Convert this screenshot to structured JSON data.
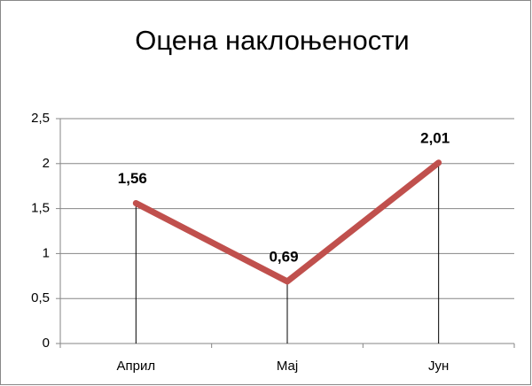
{
  "chart_data": {
    "type": "line",
    "title": "Оцена наклоњености",
    "categories": [
      "Април",
      "Мај",
      "Јун"
    ],
    "series": [
      {
        "name": "Оцена наклоњености",
        "color": "#c0504d",
        "values": [
          1.56,
          0.69,
          2.01
        ],
        "value_labels": [
          "1,56",
          "0,69",
          "2,01"
        ]
      }
    ],
    "ylim": [
      0,
      2.5
    ],
    "yticks": [
      0,
      {
        "value": 0.5,
        "label": "0,5"
      },
      1,
      {
        "value": 1.5,
        "label": "1,5"
      },
      2,
      {
        "value": 2.5,
        "label": "2,5"
      }
    ],
    "grid": true,
    "drop_lines": true
  }
}
